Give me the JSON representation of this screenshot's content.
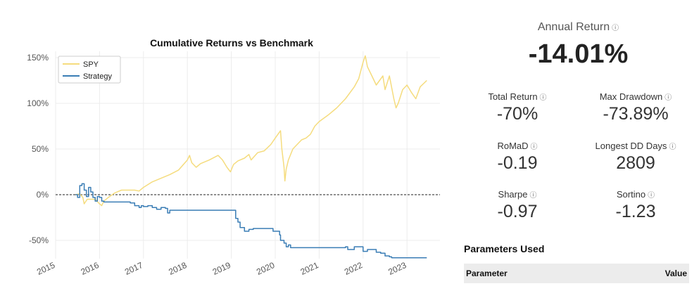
{
  "chart_data": {
    "type": "line",
    "title": "Cumulative Returns vs Benchmark",
    "xlabel": "",
    "ylabel": "",
    "x_ticks": [
      "2015",
      "2016",
      "2017",
      "2018",
      "2019",
      "2020",
      "2021",
      "2022",
      "2023"
    ],
    "y_ticks": [
      "-50%",
      "0%",
      "50%",
      "100%",
      "150%"
    ],
    "ylim": [
      -70,
      158
    ],
    "xlim": [
      2015.0,
      2023.75
    ],
    "grid": true,
    "legend": "top-left",
    "reference_line": 0,
    "series": [
      {
        "name": "SPY",
        "color": "#f5dc7e",
        "x": [
          2015.45,
          2015.55,
          2015.62,
          2015.65,
          2015.72,
          2015.8,
          2015.9,
          2016.0,
          2016.05,
          2016.1,
          2016.2,
          2016.35,
          2016.5,
          2016.65,
          2016.8,
          2016.9,
          2017.0,
          2017.2,
          2017.4,
          2017.6,
          2017.8,
          2018.0,
          2018.05,
          2018.1,
          2018.2,
          2018.3,
          2018.5,
          2018.7,
          2018.8,
          2018.9,
          2018.98,
          2019.05,
          2019.15,
          2019.3,
          2019.4,
          2019.45,
          2019.6,
          2019.75,
          2019.9,
          2020.0,
          2020.12,
          2020.15,
          2020.2,
          2020.22,
          2020.25,
          2020.3,
          2020.4,
          2020.5,
          2020.6,
          2020.7,
          2020.8,
          2020.9,
          2021.0,
          2021.2,
          2021.4,
          2021.6,
          2021.8,
          2021.9,
          2022.0,
          2022.05,
          2022.1,
          2022.2,
          2022.3,
          2022.45,
          2022.5,
          2022.6,
          2022.7,
          2022.75,
          2022.8,
          2022.9,
          2023.0,
          2023.1,
          2023.2,
          2023.3,
          2023.45
        ],
        "values": [
          0,
          1,
          -3,
          -10,
          -5,
          -5,
          -5,
          -10,
          -12,
          -7,
          -3,
          2,
          5,
          5,
          5,
          4,
          8,
          14,
          18,
          22,
          27,
          38,
          43,
          35,
          30,
          34,
          38,
          43,
          38,
          30,
          25,
          33,
          37,
          40,
          44,
          38,
          46,
          48,
          55,
          62,
          70,
          50,
          30,
          15,
          28,
          38,
          50,
          55,
          60,
          62,
          66,
          75,
          80,
          87,
          95,
          105,
          118,
          127,
          145,
          152,
          140,
          130,
          120,
          130,
          115,
          130,
          105,
          95,
          100,
          115,
          120,
          112,
          105,
          118,
          125
        ]
      },
      {
        "name": "Strategy",
        "color": "#3a7db5",
        "x": [
          2015.45,
          2015.5,
          2015.55,
          2015.6,
          2015.65,
          2015.7,
          2015.75,
          2015.8,
          2015.85,
          2015.9,
          2015.95,
          2016.0,
          2016.05,
          2016.1,
          2016.3,
          2016.6,
          2016.7,
          2016.8,
          2016.9,
          2016.95,
          2017.0,
          2017.1,
          2017.2,
          2017.3,
          2017.4,
          2017.5,
          2017.55,
          2017.6,
          2017.7,
          2019.0,
          2019.1,
          2019.15,
          2019.2,
          2019.3,
          2019.4,
          2019.5,
          2019.6,
          2019.9,
          2019.95,
          2020.1,
          2020.12,
          2020.2,
          2020.25,
          2020.3,
          2020.35,
          2021.5,
          2021.6,
          2021.65,
          2021.8,
          2022.0,
          2022.1,
          2022.3,
          2022.4,
          2022.5,
          2022.6,
          2022.65,
          2023.45
        ],
        "values": [
          0,
          -3,
          10,
          12,
          5,
          -2,
          8,
          3,
          -3,
          -7,
          -2,
          -3,
          -7,
          -8,
          -8,
          -8,
          -9,
          -12,
          -14,
          -12,
          -13,
          -12,
          -14,
          -16,
          -14,
          -15,
          -20,
          -17,
          -17,
          -17,
          -26,
          -30,
          -36,
          -40,
          -38,
          -37,
          -37,
          -37,
          -40,
          -44,
          -50,
          -53,
          -57,
          -55,
          -58,
          -58,
          -57,
          -60,
          -57,
          -62,
          -60,
          -63,
          -64,
          -67,
          -68,
          -69,
          -69
        ]
      }
    ]
  },
  "metrics": {
    "annual_return": {
      "label": "Annual Return",
      "value": "-14.01%"
    },
    "total_return": {
      "label": "Total Return",
      "value": "-70%"
    },
    "max_drawdown": {
      "label": "Max Drawdown",
      "value": "-73.89%"
    },
    "romad": {
      "label": "RoMaD",
      "value": "-0.19"
    },
    "longest_dd": {
      "label": "Longest DD Days",
      "value": "2809"
    },
    "sharpe": {
      "label": "Sharpe",
      "value": "-0.97"
    },
    "sortino": {
      "label": "Sortino",
      "value": "-1.23"
    },
    "info_icon": "ⓘ"
  },
  "parameters": {
    "title": "Parameters Used",
    "columns": [
      "Parameter",
      "Value"
    ]
  }
}
